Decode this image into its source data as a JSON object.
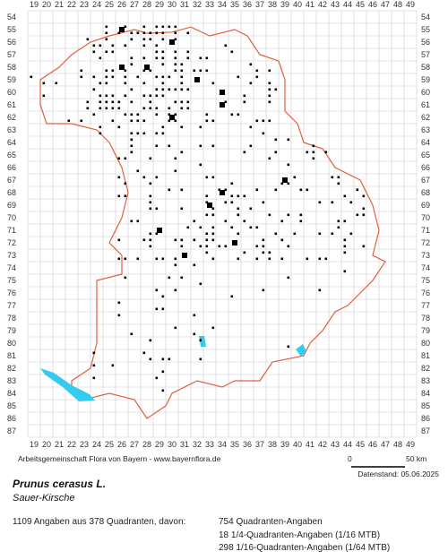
{
  "map": {
    "columns": [
      19,
      20,
      21,
      22,
      23,
      24,
      25,
      26,
      27,
      28,
      29,
      30,
      31,
      32,
      33,
      34,
      35,
      36,
      37,
      38,
      39,
      40,
      41,
      42,
      43,
      44,
      45,
      46,
      47,
      48,
      49
    ],
    "rows": [
      54,
      55,
      56,
      57,
      58,
      59,
      60,
      61,
      62,
      63,
      64,
      65,
      66,
      67,
      68,
      69,
      70,
      71,
      72,
      73,
      74,
      75,
      76,
      77,
      78,
      79,
      80,
      81,
      82,
      83,
      84,
      85,
      86,
      87
    ]
  },
  "footer": {
    "source": "Arbeitsgemeinschaft Flora von Bayern - www.bayernflora.de",
    "scale_start": "0",
    "scale_end": "50 km",
    "date": "Datenstand: 05.06.2025"
  },
  "species": {
    "name": "Prunus cerasus L.",
    "common_name": "Sauer-Kirsche"
  },
  "summary": {
    "total": "1109 Angaben aus 378 Quadranten, davon:",
    "quadrant": "754 Quadranten-Angaben",
    "quarter": "18 1/4-Quadranten-Angaben (1/16 MTB)",
    "sixteenth": "298 1/16-Quadranten-Angaben (1/64 MTB)"
  }
}
